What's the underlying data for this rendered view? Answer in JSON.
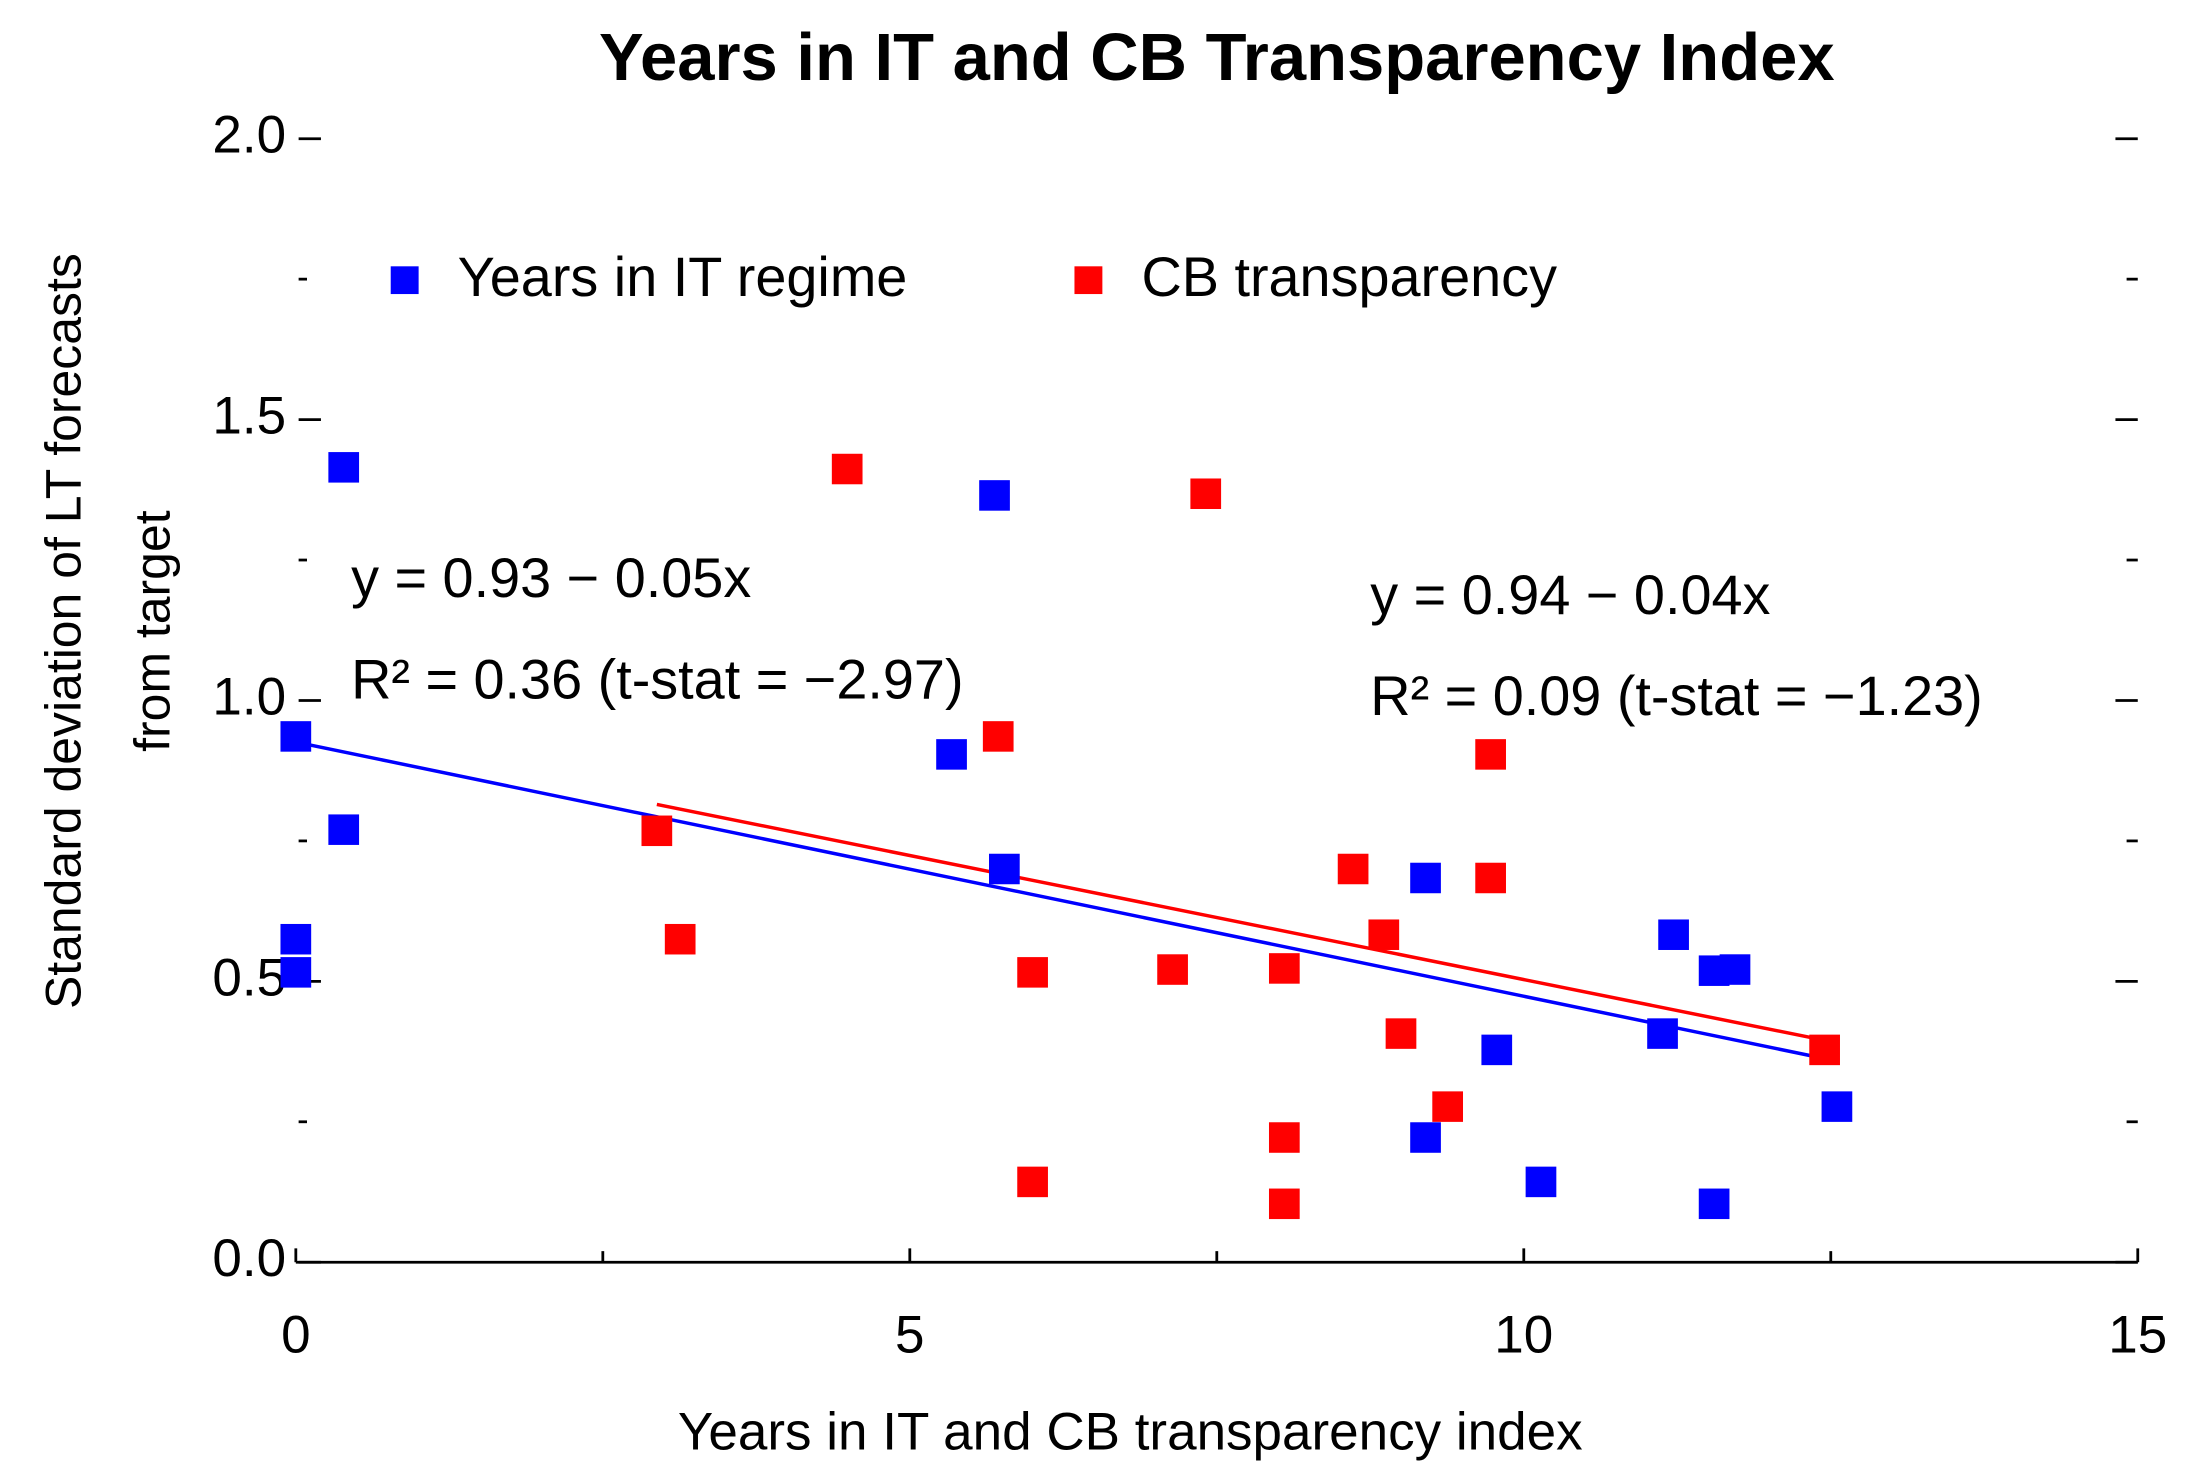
{
  "chart_data": {
    "type": "scatter",
    "title": "Years in IT and CB Transparency Index",
    "xlabel": "Years in IT and CB transparency index",
    "ylabel": [
      "Standard deviation of LT forecasts",
      "from target"
    ],
    "xlim": [
      0,
      15
    ],
    "ylim": [
      0,
      2
    ],
    "xticks": [
      0,
      5,
      10,
      15
    ],
    "xminorticks": [
      2.5,
      7.5,
      12.5
    ],
    "yticks": [
      {
        "value": 0,
        "label": "0.0"
      },
      {
        "value": 0.5,
        "label": "0.5"
      },
      {
        "value": 1,
        "label": "1.0"
      },
      {
        "value": 1.5,
        "label": "1.5"
      },
      {
        "value": 2,
        "label": "2.0"
      }
    ],
    "yminorticks": [
      0.25,
      0.75,
      1.25,
      1.75
    ],
    "mirror_yticks": true,
    "legend": "top",
    "series": [
      {
        "name": "Years in IT regime",
        "color": "#0000ff",
        "x": [
          0,
          0.39,
          0.39,
          0,
          0,
          5.34,
          5.69,
          5.77,
          9.2,
          9.2,
          9.78,
          10.14,
          11.13,
          11.22,
          11.55,
          11.72,
          11.55,
          12.55
        ],
        "values": [
          0.936,
          1.415,
          0.77,
          0.575,
          0.516,
          0.904,
          1.365,
          0.7,
          0.684,
          0.222,
          0.378,
          0.143,
          0.407,
          0.583,
          0.519,
          0.521,
          0.104,
          0.277
        ]
      },
      {
        "name": "CB transparency",
        "color": "#ff0000",
        "x": [
          2.94,
          3.13,
          4.49,
          5.72,
          6.0,
          6.0,
          7.14,
          7.41,
          8.05,
          8.05,
          8.05,
          8.61,
          8.86,
          9.0,
          9.38,
          9.73,
          9.73,
          12.45
        ],
        "values": [
          0.768,
          0.575,
          1.412,
          0.936,
          0.516,
          0.143,
          0.521,
          1.368,
          0.523,
          0.222,
          0.104,
          0.7,
          0.583,
          0.407,
          0.277,
          0.904,
          0.684,
          0.378
        ]
      }
    ],
    "trendlines": [
      {
        "color": "#0000ff",
        "x": [
          0,
          12.55
        ],
        "values": [
          0.926,
          0.358
        ]
      },
      {
        "color": "#ff0000",
        "x": [
          2.94,
          12.45
        ],
        "values": [
          0.815,
          0.395
        ]
      }
    ],
    "annotations": [
      {
        "color": "#0000ff",
        "x": 0.45,
        "y": 1.21,
        "text": "y = 0.93 − 0.05x"
      },
      {
        "color": "#0000ff",
        "x": 0.45,
        "y": 1.03,
        "text": "R² = 0.36  (t-stat = −2.97)"
      },
      {
        "color": "#ff0000",
        "x": 8.75,
        "y": 1.18,
        "text": "y = 0.94 − 0.04x"
      },
      {
        "color": "#ff0000",
        "x": 8.75,
        "y": 1.0,
        "text": "R² = 0.09 (t-stat = −1.23)"
      }
    ]
  }
}
